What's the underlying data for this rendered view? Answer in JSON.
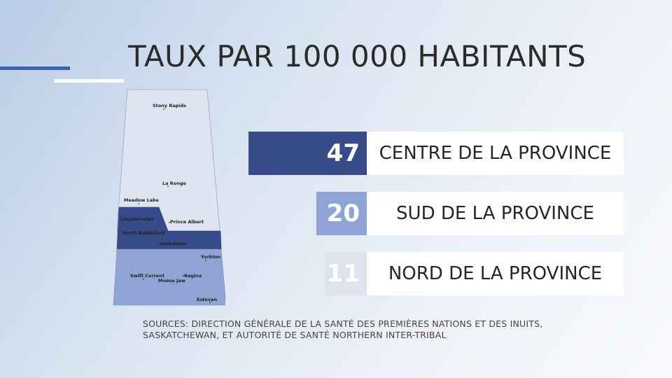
{
  "title": "TAUX PAR 100 000 HABITANTS",
  "chart_data": {
    "type": "bar",
    "orientation": "horizontal",
    "title": "TAUX PAR 100 000 HABITANTS",
    "categories": [
      "CENTRE DE LA PROVINCE",
      "SUD DE LA PROVINCE",
      "NORD DE LA PROVINCE"
    ],
    "values": [
      47,
      20,
      11
    ],
    "colors": [
      "#374b8b",
      "#8fa3d4",
      "#dfe3ef"
    ],
    "xlim": [
      0,
      50
    ]
  },
  "map": {
    "cities": [
      "Stony Rapids",
      "La Ronge",
      "Meadow Lake",
      "Lloydminster",
      "Prince Albert",
      "North Battleford",
      "Saskatoon",
      "Yorkton",
      "Swift Current",
      "Regina",
      "Moose Jaw",
      "Estevan"
    ],
    "region_colors": {
      "north": "#dfe4f1",
      "centre": "#374b8b",
      "south": "#8fa3d4"
    }
  },
  "sources": {
    "line1": "SOURCES: DIRECTION GÉNÉRALE DE LA SANTÉ DES PREMIÈRES NATIONS ET DES INUITS,",
    "line2": "SASKATCHEWAN, ET AUTORITÉ DE SANTÉ NORTHERN INTER-TRIBAL"
  }
}
